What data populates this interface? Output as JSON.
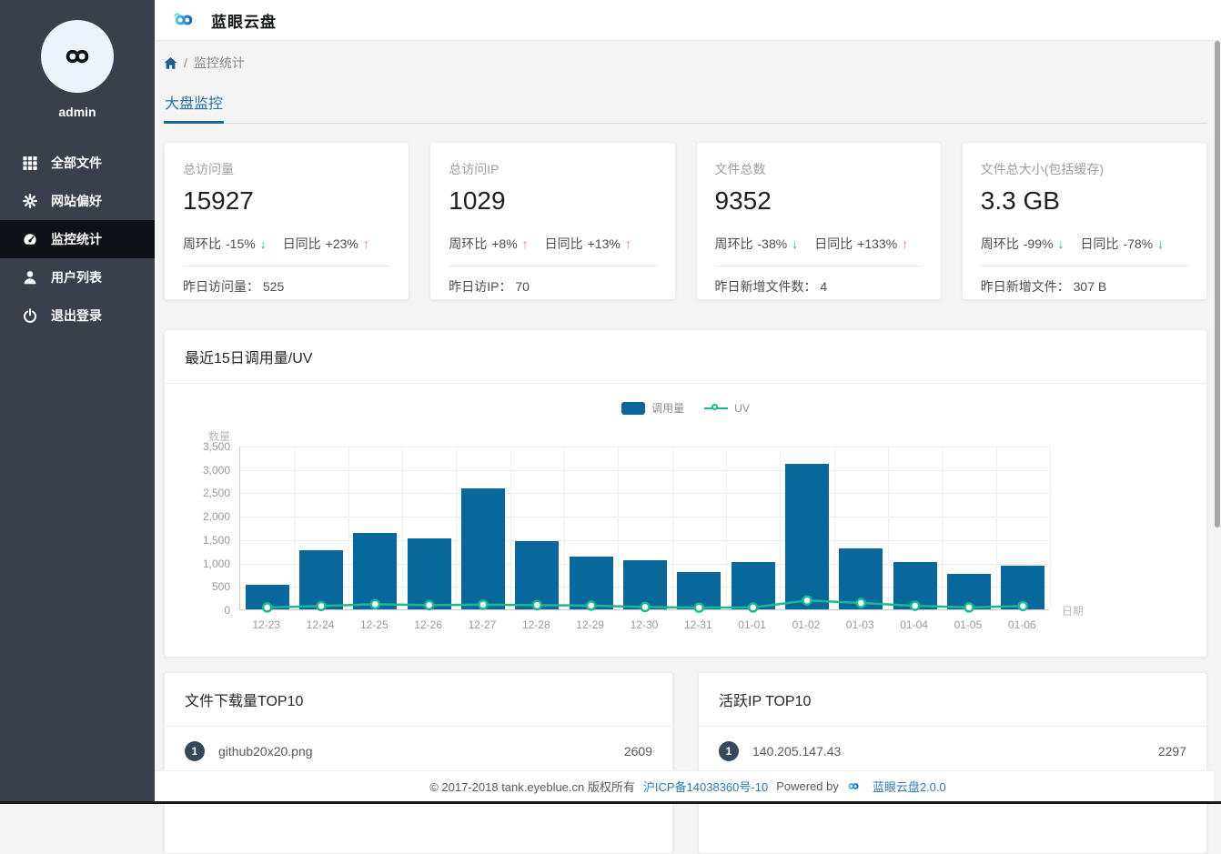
{
  "app": {
    "title": "蓝眼云盘"
  },
  "sidebar": {
    "username": "admin",
    "items": [
      {
        "label": "全部文件",
        "icon": "grid-icon",
        "active": false
      },
      {
        "label": "网站偏好",
        "icon": "gear-icon",
        "active": false
      },
      {
        "label": "监控统计",
        "icon": "dashboard-icon",
        "active": true
      },
      {
        "label": "用户列表",
        "icon": "user-icon",
        "active": false
      },
      {
        "label": "退出登录",
        "icon": "power-icon",
        "active": false
      }
    ]
  },
  "breadcrumb": {
    "home_icon": "home-icon",
    "separator": "/",
    "section": "监控统计"
  },
  "tabs": {
    "items": [
      {
        "label": "大盘监控",
        "active": true
      }
    ]
  },
  "stat_cards": [
    {
      "label": "总访问量",
      "value": "15927",
      "trends": [
        {
          "label": "周环比",
          "delta": "-15%",
          "dir": "down"
        },
        {
          "label": "日同比",
          "delta": "+23%",
          "dir": "up"
        }
      ],
      "footer_label": "昨日访问量：",
      "footer_value": "525"
    },
    {
      "label": "总访问IP",
      "value": "1029",
      "trends": [
        {
          "label": "周环比",
          "delta": "+8%",
          "dir": "up"
        },
        {
          "label": "日同比",
          "delta": "+13%",
          "dir": "up"
        }
      ],
      "footer_label": "昨日访IP：",
      "footer_value": "70"
    },
    {
      "label": "文件总数",
      "value": "9352",
      "trends": [
        {
          "label": "周环比",
          "delta": "-38%",
          "dir": "down"
        },
        {
          "label": "日同比",
          "delta": "+133%",
          "dir": "up"
        }
      ],
      "footer_label": "昨日新增文件数：",
      "footer_value": "4"
    },
    {
      "label": "文件总大小(包括缓存)",
      "value": "3.3 GB",
      "trends": [
        {
          "label": "周环比",
          "delta": "-99%",
          "dir": "down"
        },
        {
          "label": "日同比",
          "delta": "-78%",
          "dir": "down"
        }
      ],
      "footer_label": "昨日新增文件：",
      "footer_value": "307 B"
    }
  ],
  "chart_card": {
    "title": "最近15日调用量/UV"
  },
  "chart_data": {
    "type": "bar",
    "title": "最近15日调用量/UV",
    "categories": [
      "12-23",
      "12-24",
      "12-25",
      "12-26",
      "12-27",
      "12-28",
      "12-29",
      "12-30",
      "12-31",
      "01-01",
      "01-02",
      "01-03",
      "01-04",
      "01-05",
      "01-06"
    ],
    "series": [
      {
        "name": "调用量",
        "type": "bar",
        "color": "#08689c",
        "values": [
          530,
          1260,
          1630,
          1520,
          2590,
          1450,
          1120,
          1060,
          790,
          1010,
          3120,
          1310,
          1010,
          750,
          930
        ]
      },
      {
        "name": "UV",
        "type": "line",
        "color": "#1cb990",
        "values": [
          60,
          90,
          130,
          110,
          120,
          110,
          100,
          70,
          55,
          60,
          210,
          155,
          95,
          60,
          90
        ]
      }
    ],
    "xlabel": "日期",
    "ylabel": "数量",
    "ylim": [
      0,
      3500
    ],
    "ytick_values": [
      0,
      500,
      1000,
      1500,
      2000,
      2500,
      3000,
      3500
    ],
    "ytick_labels": [
      "0",
      "500",
      "1,000",
      "1,500",
      "2,000",
      "2,500",
      "3,000",
      "3,500"
    ],
    "grid": true,
    "legend_position": "top-center"
  },
  "top_downloads": {
    "title": "文件下载量TOP10",
    "items": [
      {
        "rank": "1",
        "name": "github20x20.png",
        "value": "2609"
      }
    ]
  },
  "top_ips": {
    "title": "活跃IP TOP10",
    "items": [
      {
        "rank": "1",
        "name": "140.205.147.43",
        "value": "2297"
      }
    ]
  },
  "footer": {
    "copyright": "© 2017-2018 tank.eyeblue.cn 版权所有",
    "icp": "沪ICP备14038360号-10",
    "powered_by": "Powered by",
    "product": "蓝眼云盘2.0.0"
  },
  "colors": {
    "sidebar_bg": "#3a3f4c",
    "sidebar_active_bg": "#0e1015",
    "bar": "#08689c",
    "uv_line": "#1cb990",
    "trend_up": "#f7765f",
    "trend_down": "#00bd9a",
    "tab_text": "#2074a8",
    "tab_underline": "#156996",
    "link": "#2879be",
    "rank_badge": "#36495a"
  }
}
